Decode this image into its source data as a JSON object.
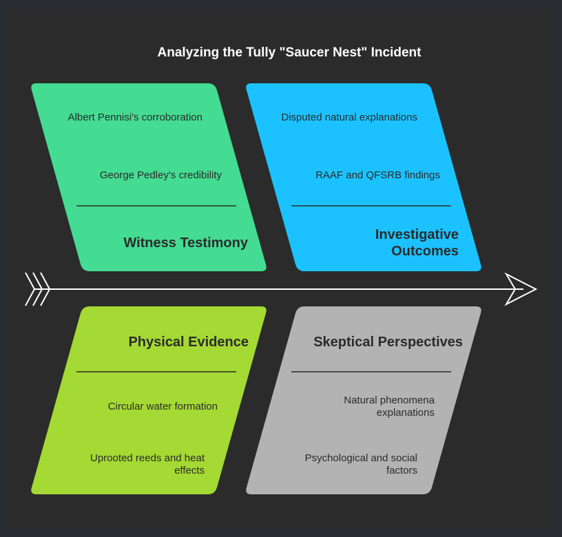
{
  "title": "Analyzing the Tully \"Saucer Nest\" Incident",
  "categories": [
    {
      "name": "Witness Testimony",
      "color": "#43dc92",
      "causes": [
        "Albert Pennisi's corroboration",
        "George Pedley's credibility"
      ]
    },
    {
      "name": "Investigative Outcomes",
      "color": "#1cc2ff",
      "causes": [
        "Disputed natural explanations",
        "RAAF and QFSRB findings"
      ]
    },
    {
      "name": "Physical Evidence",
      "color": "#a5d933",
      "causes": [
        "Circular water formation",
        "Uprooted reeds and heat effects"
      ]
    },
    {
      "name": "Skeptical Perspectives",
      "color": "#b3b3b3",
      "causes": [
        "Natural phenomena explanations",
        "Psychological and social factors"
      ]
    }
  ]
}
